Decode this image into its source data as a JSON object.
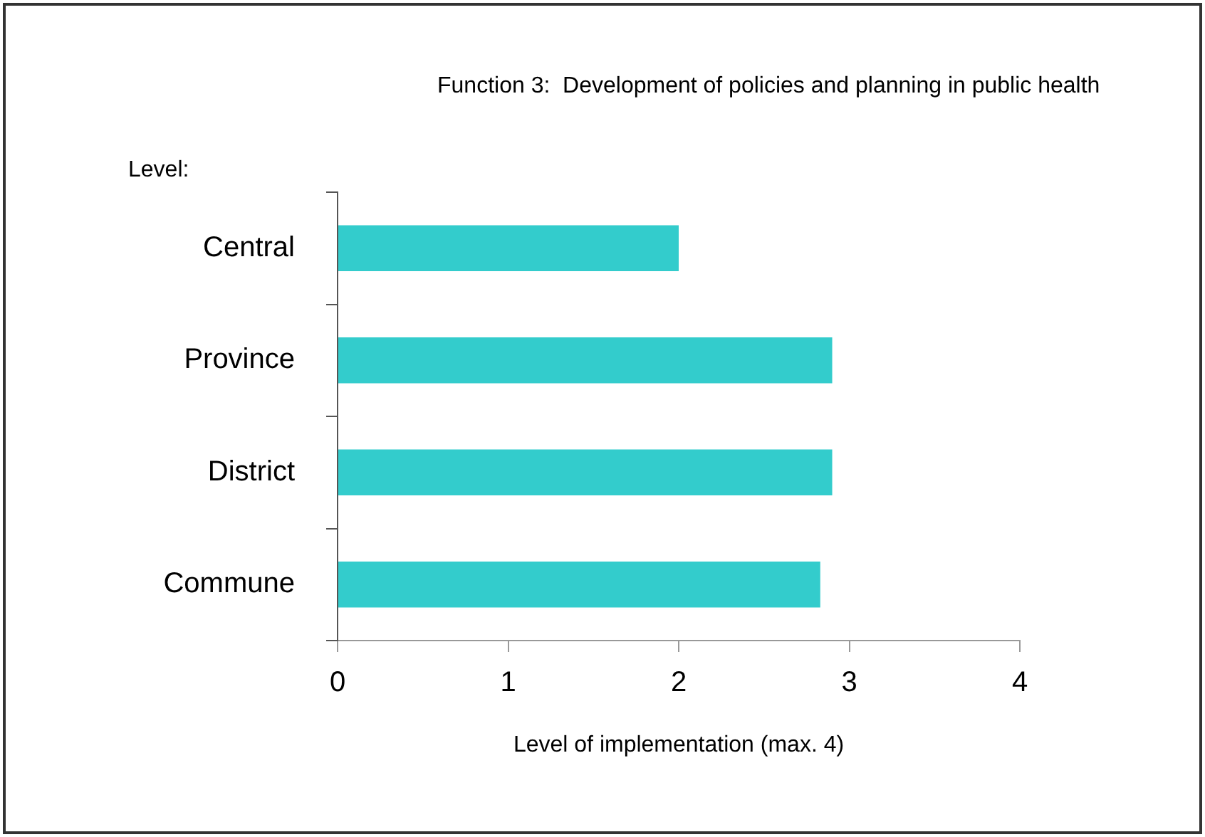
{
  "chart_data": {
    "type": "bar",
    "orientation": "horizontal",
    "title": "Function 3:  Development of policies and planning in public health",
    "ylabel": "Level:",
    "xlabel": "Level of implementation (max. 4)",
    "categories": [
      "Central",
      "Province",
      "District",
      "Commune"
    ],
    "values": [
      2.0,
      2.9,
      2.9,
      2.83
    ],
    "color": "#33cccc",
    "xlim": [
      0,
      4
    ],
    "xticks": [
      0,
      1,
      2,
      3,
      4
    ],
    "grid": false,
    "legend": false
  }
}
